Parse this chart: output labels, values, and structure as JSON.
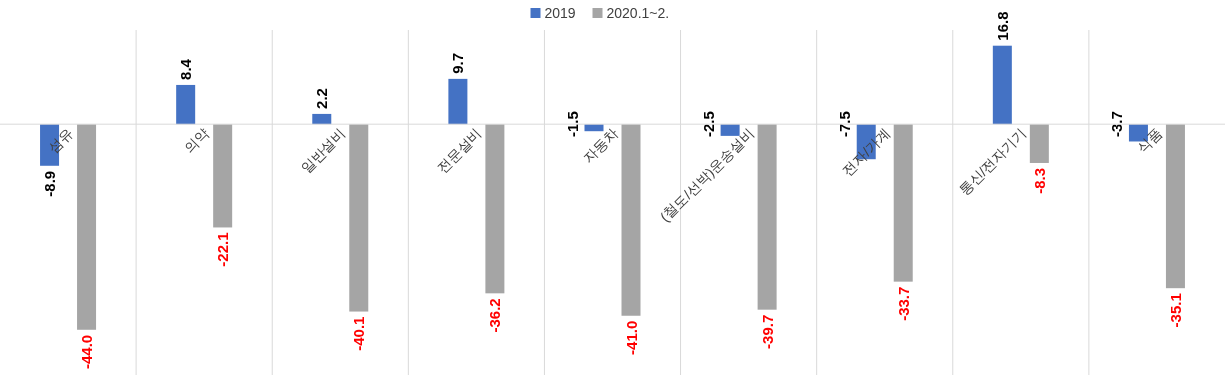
{
  "chart_data": {
    "type": "bar",
    "categories": [
      "섬유",
      "의약",
      "일반설비",
      "전문설비",
      "자동차",
      "(철도/선박)운송설비",
      "전자/가계",
      "통신/전자기기",
      "식품"
    ],
    "series": [
      {
        "name": "2019",
        "color": "#4472c4",
        "values": [
          -8.9,
          8.4,
          2.2,
          9.7,
          -1.5,
          -2.5,
          -7.5,
          16.8,
          -3.7
        ],
        "value_labels": [
          "-8.9",
          "8.4",
          "2.2",
          "9.7",
          "-1.5",
          "-2.5",
          "-7.5",
          "16.8",
          "-3.7"
        ]
      },
      {
        "name": "2020.1~2.",
        "color": "#a5a5a5",
        "values": [
          -44.0,
          -22.1,
          -40.1,
          -36.2,
          -41.0,
          -39.7,
          -33.7,
          -8.3,
          -35.1
        ],
        "value_labels": [
          "-44.0",
          "-22.1",
          "-40.1",
          "-36.2",
          "-41.0",
          "-39.7",
          "-33.7",
          "-8.3",
          "-35.1"
        ]
      }
    ],
    "legend": "top",
    "grid": "x"
  }
}
